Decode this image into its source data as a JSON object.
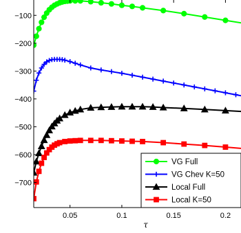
{
  "chart_data": {
    "type": "line",
    "title": "",
    "xlabel": "τ",
    "ylabel": "",
    "xlim": [
      0.015,
      0.215
    ],
    "ylim": [
      -790,
      -45
    ],
    "xticks": [
      0.05,
      0.1,
      0.15,
      0.2
    ],
    "xtick_labels": [
      "0.05",
      "0.1",
      "0.15",
      "0.2"
    ],
    "yticks": [
      -100,
      -200,
      -300,
      -400,
      -500,
      -600,
      -700
    ],
    "ytick_labels": [
      "−100",
      "−200",
      "−300",
      "−400",
      "−500",
      "−600",
      "−700"
    ],
    "grid": false,
    "legend_position": "bottom-right",
    "series": [
      {
        "name": "VG Full",
        "color": "#00ff00",
        "marker": "circle",
        "x": [
          0.015,
          0.0175,
          0.02,
          0.0225,
          0.025,
          0.0275,
          0.03,
          0.0325,
          0.035,
          0.0375,
          0.04,
          0.0425,
          0.045,
          0.0475,
          0.05,
          0.055,
          0.06,
          0.07,
          0.08,
          0.09,
          0.1,
          0.11,
          0.12,
          0.14,
          0.16,
          0.18,
          0.2,
          0.22
        ],
        "values": [
          -207,
          -175,
          -148,
          -125,
          -107,
          -92,
          -80,
          -71,
          -64,
          -59,
          -55,
          -52,
          -50,
          -49,
          -48,
          -48,
          -48,
          -51,
          -55,
          -59,
          -64,
          -68,
          -73,
          -83,
          -94,
          -106,
          -118,
          -130
        ]
      },
      {
        "name": "VG Chev K=50",
        "color": "#0000ff",
        "marker": "plus",
        "x": [
          0.015,
          0.0175,
          0.02,
          0.0225,
          0.025,
          0.0275,
          0.03,
          0.0325,
          0.035,
          0.0375,
          0.04,
          0.0425,
          0.045,
          0.05,
          0.055,
          0.06,
          0.07,
          0.08,
          0.09,
          0.1,
          0.11,
          0.12,
          0.13,
          0.14,
          0.15,
          0.16,
          0.17,
          0.18,
          0.19,
          0.2,
          0.21,
          0.22
        ],
        "values": [
          -372,
          -333,
          -307,
          -289,
          -276,
          -267,
          -262,
          -259,
          -258,
          -258,
          -258,
          -259,
          -261,
          -266,
          -272,
          -278,
          -289,
          -296,
          -302,
          -308,
          -315,
          -322,
          -329,
          -336,
          -343,
          -350,
          -357,
          -364,
          -371,
          -378,
          -385,
          -392
        ]
      },
      {
        "name": "Local Full",
        "color": "#000000",
        "marker": "triangle",
        "x": [
          0.015,
          0.0175,
          0.02,
          0.0225,
          0.025,
          0.0275,
          0.03,
          0.0325,
          0.035,
          0.0375,
          0.04,
          0.045,
          0.05,
          0.055,
          0.06,
          0.07,
          0.08,
          0.09,
          0.1,
          0.11,
          0.12,
          0.13,
          0.14,
          0.16,
          0.18,
          0.2,
          0.22
        ],
        "values": [
          -665,
          -625,
          -595,
          -570,
          -548,
          -530,
          -513,
          -499,
          -488,
          -478,
          -470,
          -458,
          -449,
          -443,
          -438,
          -432,
          -430,
          -429,
          -428,
          -428,
          -428,
          -429,
          -431,
          -434,
          -438,
          -442,
          -446
        ]
      },
      {
        "name": "Local K=50",
        "color": "#ff0000",
        "marker": "square",
        "x": [
          0.015,
          0.0175,
          0.02,
          0.0225,
          0.025,
          0.0275,
          0.03,
          0.0325,
          0.035,
          0.0375,
          0.04,
          0.045,
          0.05,
          0.055,
          0.06,
          0.07,
          0.08,
          0.09,
          0.1,
          0.11,
          0.12,
          0.14,
          0.16,
          0.18,
          0.2,
          0.22
        ],
        "values": [
          -758,
          -698,
          -660,
          -631,
          -610,
          -594,
          -582,
          -573,
          -566,
          -561,
          -557,
          -553,
          -551,
          -550,
          -549,
          -549,
          -549,
          -550,
          -551,
          -552,
          -553,
          -557,
          -562,
          -567,
          -573,
          -579
        ]
      }
    ]
  }
}
